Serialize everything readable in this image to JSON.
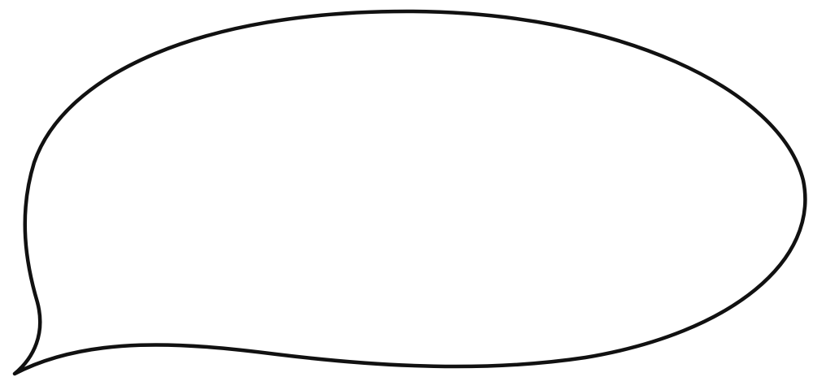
{
  "bubble": {
    "stroke_color": "#111111",
    "fill_color": "#ffffff"
  }
}
